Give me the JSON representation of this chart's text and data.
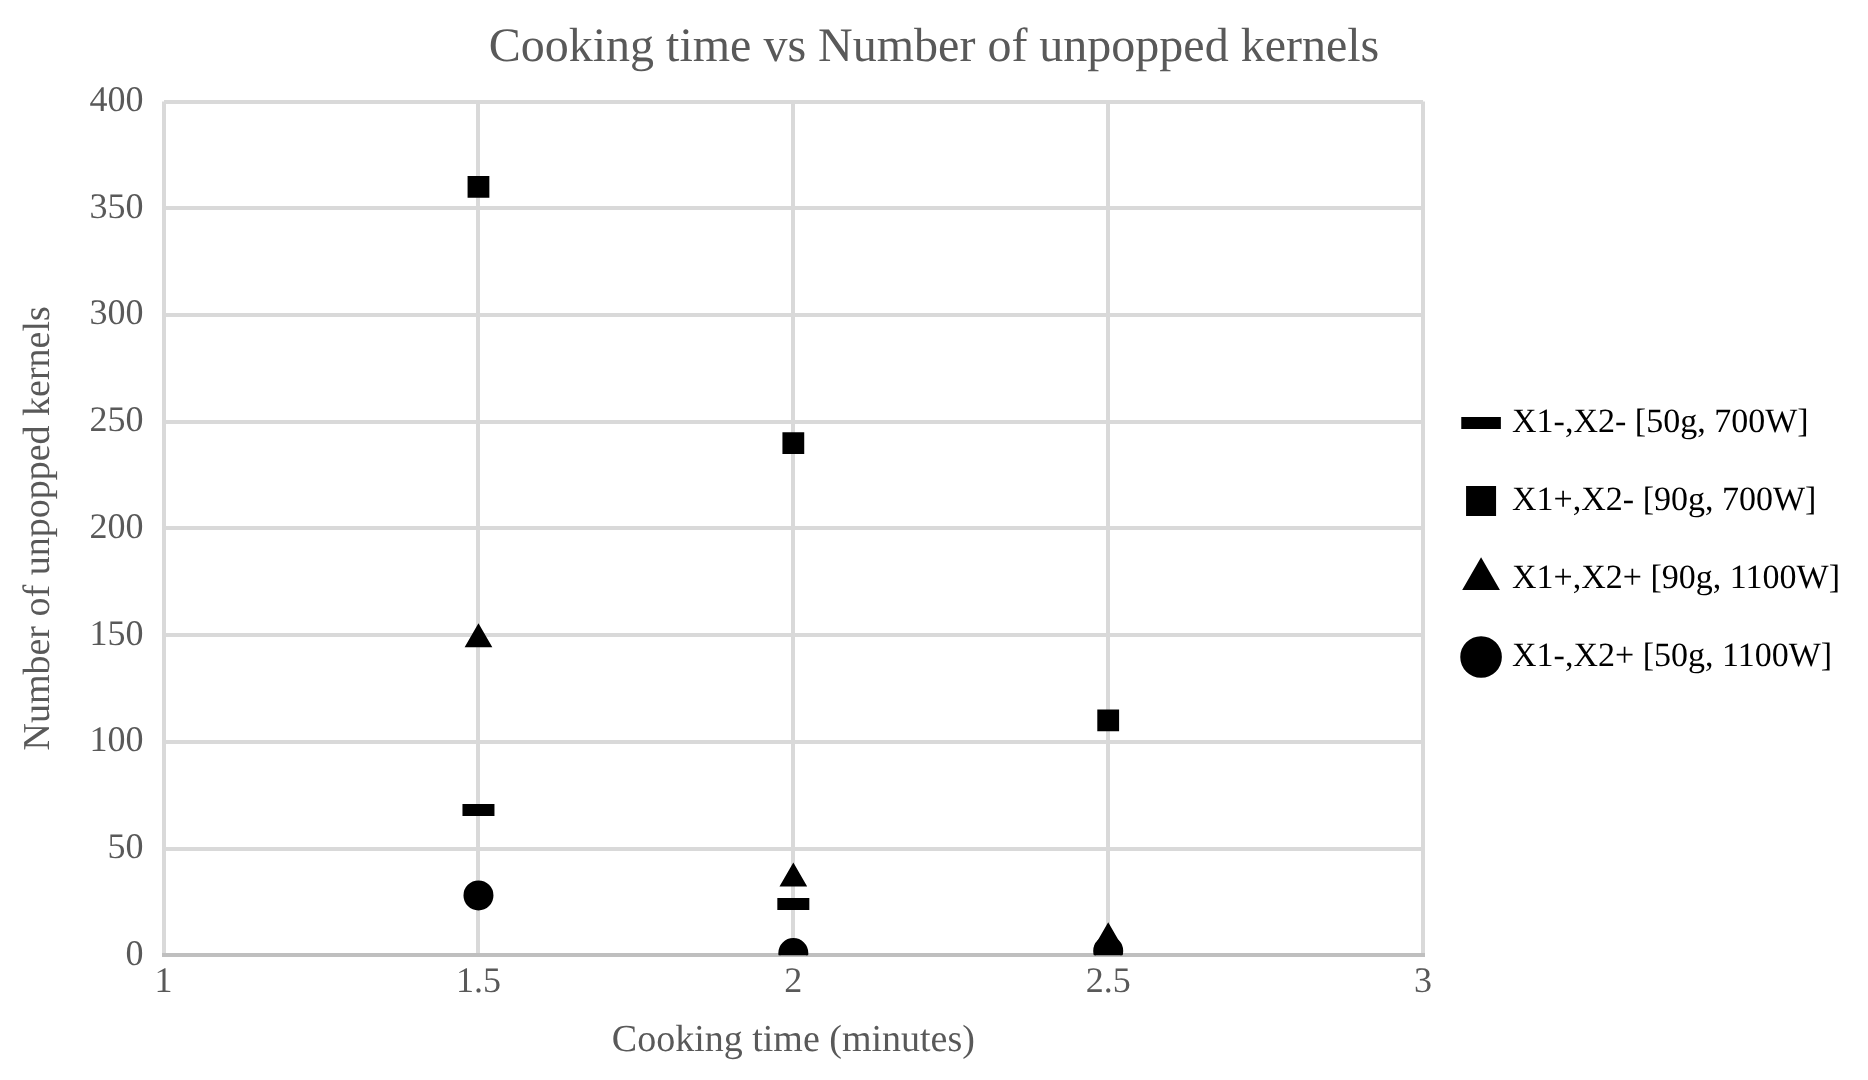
{
  "chart_data": {
    "type": "scatter",
    "title": "Cooking time vs Number of unpopped kernels",
    "xlabel": "Cooking time (minutes)",
    "ylabel": "Number of unpopped kernels",
    "x": [
      1.5,
      2,
      2.5
    ],
    "series": [
      {
        "name": "X1-,X2- [50g, 700W]",
        "color": "#000000",
        "values": [
          68,
          24,
          null
        ]
      },
      {
        "name": "X1+,X2- [90g, 700W]",
        "color": "#000000",
        "marker": "square",
        "values": [
          360,
          240,
          110
        ]
      },
      {
        "name": "X1+,X2+ [90g, 1100W]",
        "color": "#000000",
        "marker": "triangle",
        "values": [
          148,
          36,
          8
        ]
      },
      {
        "name": "X1-,X2+ [50g, 1100W]",
        "color": "#000000",
        "marker": "circle",
        "values": [
          28,
          1,
          2
        ]
      }
    ],
    "xlim": [
      1,
      3
    ],
    "xticks": [
      1,
      1.5,
      2,
      2.5,
      3
    ],
    "ylim": [
      0,
      400
    ],
    "yticks": [
      0,
      50,
      100,
      150,
      200,
      250,
      300,
      350,
      400
    ],
    "grid": true,
    "legend": "right"
  }
}
